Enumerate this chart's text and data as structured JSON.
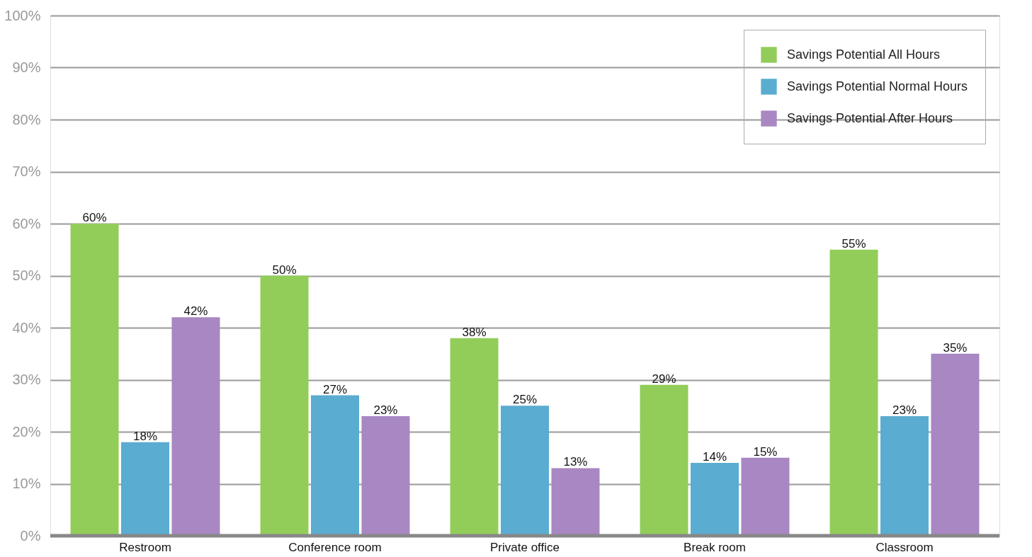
{
  "chart_data": {
    "type": "bar",
    "categories": [
      "Restroom",
      "Conference room",
      "Private office",
      "Break room",
      "Classroom"
    ],
    "series": [
      {
        "name": "Savings Potential All Hours",
        "color": "#92cd5a",
        "values": [
          60,
          50,
          38,
          29,
          55
        ],
        "value_labels": [
          "60%",
          "50%",
          "38%",
          "29%",
          "55%"
        ]
      },
      {
        "name": "Savings Potential Normal Hours",
        "color": "#5aacd0",
        "values": [
          18,
          27,
          25,
          14,
          23
        ],
        "value_labels": [
          "18%",
          "27%",
          "25%",
          "14%",
          "23%"
        ]
      },
      {
        "name": "Savings Potential After Hours",
        "color": "#a887c2",
        "values": [
          42,
          23,
          13,
          15,
          35
        ],
        "value_labels": [
          "42%",
          "23%",
          "13%",
          "15%",
          "35%"
        ]
      }
    ],
    "ylim": [
      0,
      100
    ],
    "yticks": [
      {
        "value": 0,
        "label": "0%"
      },
      {
        "value": 10,
        "label": "10%"
      },
      {
        "value": 20,
        "label": "20%"
      },
      {
        "value": 30,
        "label": "30%"
      },
      {
        "value": 40,
        "label": "40%"
      },
      {
        "value": 50,
        "label": "50%"
      },
      {
        "value": 60,
        "label": "60%"
      },
      {
        "value": 70,
        "label": "70%"
      },
      {
        "value": 80,
        "label": "80%"
      },
      {
        "value": 90,
        "label": "90%"
      },
      {
        "value": 100,
        "label": "100%"
      }
    ],
    "grid": "y",
    "legend": "top right"
  }
}
